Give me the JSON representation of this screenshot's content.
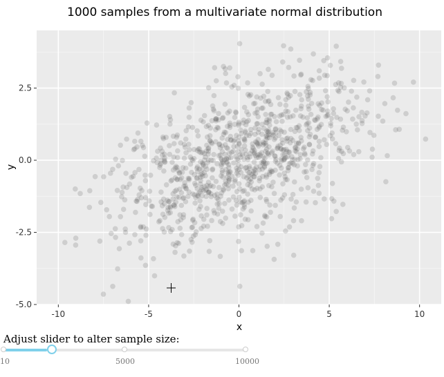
{
  "chart_data": {
    "type": "scatter",
    "title": "1000 samples from a multivariate normal distribution",
    "xlabel": "x",
    "ylabel": "y",
    "xlim": [
      -11.2,
      11.2
    ],
    "ylim": [
      -5.0,
      4.5
    ],
    "xticks": [
      "-10",
      "-5",
      "0",
      "5",
      "10"
    ],
    "yticks": [
      "-5.0",
      "-2.5",
      "0.0",
      "2.5"
    ],
    "xtick_values": [
      -10,
      -5,
      0,
      5,
      10
    ],
    "ytick_values": [
      -5.0,
      -2.5,
      0.0,
      2.5
    ],
    "n": 1000,
    "mean": [
      0,
      0
    ],
    "sd": [
      3.5,
      1.5
    ],
    "correlation": 0.5,
    "point_color": "#595959",
    "panel_color": "#ebebeb",
    "grid": true
  },
  "slider": {
    "label": "Adjust slider to alter sample size:",
    "min_label": "10",
    "mid_label": "5000",
    "max_label": "10000",
    "min": 10,
    "max": 10000,
    "value": 1000,
    "accent": "#7fd0ea"
  }
}
